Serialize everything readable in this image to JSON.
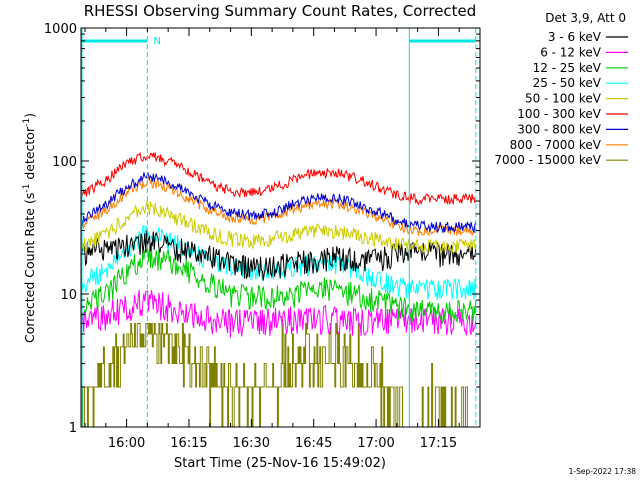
{
  "footer": {
    "timestamp": "1-Sep-2022 17:38"
  },
  "chart_data": {
    "type": "line",
    "title": "RHESSI Observing Summary Count Rates, Corrected",
    "xlabel": "Start Time (25-Nov-16 15:49:02)",
    "ylabel_parts": {
      "main": "Corrected Count Rate (s",
      "sup1": "-1",
      "mid": " detector",
      "sup2": "-1",
      "end": ")"
    },
    "y_scale": "log",
    "ylim": [
      1,
      1000
    ],
    "y_ticks": [
      {
        "value": 1,
        "label": "1"
      },
      {
        "value": 10,
        "label": "10"
      },
      {
        "value": 100,
        "label": "100"
      },
      {
        "value": 1000,
        "label": "1000"
      }
    ],
    "xlim": [
      "15:49:02",
      "17:25:00"
    ],
    "x_ticks": [
      {
        "value": "16:00",
        "label": "16:00"
      },
      {
        "value": "16:15",
        "label": "16:15"
      },
      {
        "value": "16:30",
        "label": "16:30"
      },
      {
        "value": "16:45",
        "label": "16:45"
      },
      {
        "value": "17:00",
        "label": "17:00"
      },
      {
        "value": "17:15",
        "label": "17:15"
      }
    ],
    "legend": {
      "placement": "top-right",
      "header": "Det 3,9, Att 0"
    },
    "annotations": {
      "night_marker_label": "N",
      "cyan_bar_intervals": [
        [
          "15:49:02",
          "16:05"
        ],
        [
          "17:08",
          "17:24"
        ]
      ],
      "vertical_markers": [
        {
          "time": "16:05",
          "style": "dashed"
        },
        {
          "time": "17:08",
          "style": "solid"
        },
        {
          "time": "17:24",
          "style": "dashed"
        }
      ],
      "color": "#00e5e5"
    },
    "series": [
      {
        "name": "3 - 6 keV",
        "color": "#000000",
        "x": [
          "15:49",
          "15:55",
          "16:00",
          "16:05",
          "16:10",
          "16:15",
          "16:20",
          "16:25",
          "16:30",
          "16:35",
          "16:40",
          "16:45",
          "16:50",
          "16:55",
          "17:00",
          "17:05",
          "17:10",
          "17:15",
          "17:20",
          "17:24"
        ],
        "y": [
          21,
          22,
          24,
          25,
          23,
          21,
          19,
          17,
          16,
          16,
          17,
          18,
          19,
          18,
          18,
          20,
          21,
          20,
          19,
          20
        ]
      },
      {
        "name": "6 - 12 keV",
        "color": "#ff00ff",
        "x": [
          "15:49",
          "15:55",
          "16:00",
          "16:05",
          "16:10",
          "16:15",
          "16:20",
          "16:25",
          "16:30",
          "16:35",
          "16:40",
          "16:45",
          "16:50",
          "16:55",
          "17:00",
          "17:05",
          "17:10",
          "17:15",
          "17:20",
          "17:24"
        ],
        "y": [
          6.5,
          7,
          8,
          9,
          8,
          7,
          6.5,
          6.2,
          6.2,
          6.3,
          6.5,
          6.6,
          6.5,
          6.4,
          6.3,
          6.3,
          6.5,
          6.4,
          6.3,
          6.3
        ]
      },
      {
        "name": "12 - 25 keV",
        "color": "#00cc00",
        "x": [
          "15:49",
          "15:55",
          "16:00",
          "16:05",
          "16:10",
          "16:15",
          "16:20",
          "16:25",
          "16:30",
          "16:35",
          "16:40",
          "16:45",
          "16:50",
          "16:55",
          "17:00",
          "17:05",
          "17:10",
          "17:15",
          "17:20",
          "17:24"
        ],
        "y": [
          8,
          10,
          15,
          20,
          18,
          15,
          12,
          10,
          9.5,
          9.5,
          10,
          11,
          11,
          10,
          9,
          8,
          7.5,
          7.5,
          7.5,
          7.5
        ]
      },
      {
        "name": "25 - 50 keV",
        "color": "#00ffff",
        "x": [
          "15:49",
          "15:55",
          "16:00",
          "16:05",
          "16:10",
          "16:15",
          "16:20",
          "16:25",
          "16:30",
          "16:35",
          "16:40",
          "16:45",
          "16:50",
          "16:55",
          "17:00",
          "17:05",
          "17:10",
          "17:15",
          "17:20",
          "17:24"
        ],
        "y": [
          12,
          15,
          22,
          29,
          26,
          21,
          18,
          16,
          15,
          15,
          16,
          17,
          17,
          15,
          13,
          11.5,
          11,
          11,
          11,
          11
        ]
      },
      {
        "name": "50 - 100 keV",
        "color": "#cccc00",
        "x": [
          "15:49",
          "15:55",
          "16:00",
          "16:05",
          "16:10",
          "16:15",
          "16:20",
          "16:25",
          "16:30",
          "16:35",
          "16:40",
          "16:45",
          "16:50",
          "16:55",
          "17:00",
          "17:05",
          "17:10",
          "17:15",
          "17:20",
          "17:24"
        ],
        "y": [
          23,
          28,
          38,
          45,
          40,
          34,
          29,
          26,
          25,
          26,
          28,
          30,
          30,
          28,
          26,
          24,
          23,
          23,
          23,
          23
        ]
      },
      {
        "name": "100 - 300 keV",
        "color": "#ff0000",
        "x": [
          "15:49",
          "15:55",
          "16:00",
          "16:05",
          "16:10",
          "16:15",
          "16:20",
          "16:25",
          "16:30",
          "16:35",
          "16:40",
          "16:45",
          "16:50",
          "16:55",
          "17:00",
          "17:05",
          "17:10",
          "17:15",
          "17:20",
          "17:24"
        ],
        "y": [
          55,
          72,
          95,
          112,
          100,
          83,
          68,
          60,
          58,
          62,
          72,
          82,
          82,
          75,
          65,
          56,
          52,
          52,
          52,
          52
        ]
      },
      {
        "name": "300 - 800 keV",
        "color": "#0000cc",
        "x": [
          "15:49",
          "15:55",
          "16:00",
          "16:05",
          "16:10",
          "16:15",
          "16:20",
          "16:25",
          "16:30",
          "16:35",
          "16:40",
          "16:45",
          "16:50",
          "16:55",
          "17:00",
          "17:05",
          "17:10",
          "17:15",
          "17:20",
          "17:24"
        ],
        "y": [
          35,
          47,
          64,
          78,
          70,
          58,
          47,
          41,
          39,
          41,
          47,
          53,
          53,
          48,
          42,
          36,
          33,
          32,
          32,
          32
        ]
      },
      {
        "name": "800 - 7000 keV",
        "color": "#ff8000",
        "x": [
          "15:49",
          "15:55",
          "16:00",
          "16:05",
          "16:10",
          "16:15",
          "16:20",
          "16:25",
          "16:30",
          "16:35",
          "16:40",
          "16:45",
          "16:50",
          "16:55",
          "17:00",
          "17:05",
          "17:10",
          "17:15",
          "17:20",
          "17:24"
        ],
        "y": [
          32,
          43,
          58,
          70,
          63,
          52,
          43,
          38,
          36,
          38,
          43,
          48,
          48,
          44,
          38,
          33,
          30,
          30,
          30,
          30
        ]
      },
      {
        "name": "7000 - 15000 keV",
        "color": "#808000",
        "x": [
          "15:49",
          "15:55",
          "16:00",
          "16:05",
          "16:10",
          "16:15",
          "16:20",
          "16:25",
          "16:30",
          "16:35",
          "16:40",
          "16:45",
          "16:50",
          "16:55",
          "17:00",
          "17:05",
          "17:10",
          "17:15",
          "17:20",
          "17:24"
        ],
        "y": [
          1.5,
          2.5,
          3.5,
          4.5,
          4,
          3,
          2.3,
          1.8,
          1.8,
          2,
          2.5,
          3,
          3,
          2.5,
          2,
          1.5,
          1.3,
          1.3,
          1.3,
          1.3
        ]
      }
    ]
  }
}
